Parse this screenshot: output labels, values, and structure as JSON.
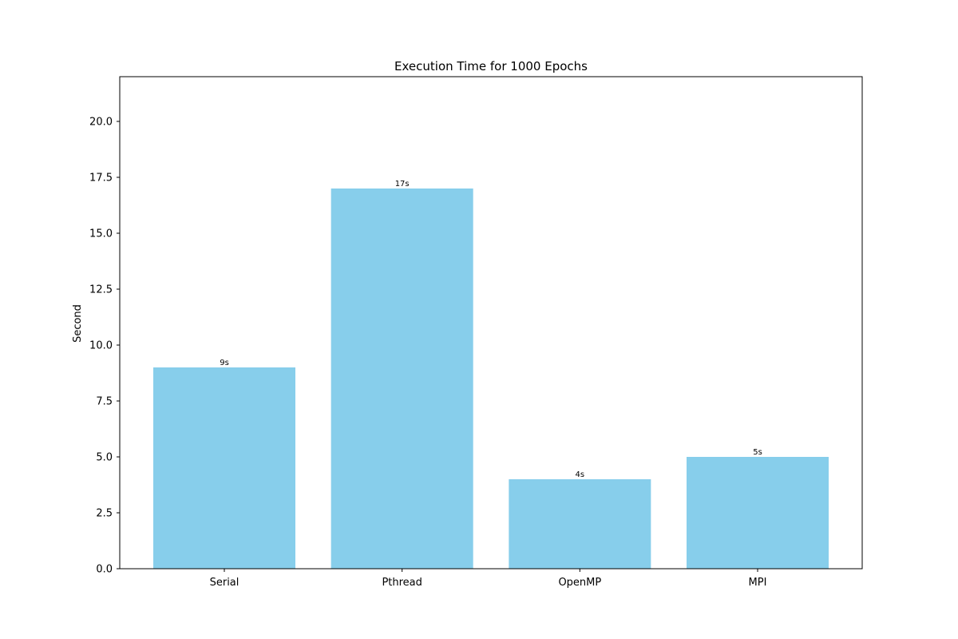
{
  "chart_data": {
    "type": "bar",
    "title": "Execution Time for 1000 Epochs",
    "xlabel": "",
    "ylabel": "Second",
    "categories": [
      "Serial",
      "Pthread",
      "OpenMP",
      "MPI"
    ],
    "values": [
      9,
      17,
      4,
      5
    ],
    "bar_labels": [
      "9s",
      "17s",
      "4s",
      "5s"
    ],
    "ylim": [
      0,
      22
    ],
    "yticks": [
      0.0,
      2.5,
      5.0,
      7.5,
      10.0,
      12.5,
      15.0,
      17.5,
      20.0
    ],
    "ytick_labels": [
      "0.0",
      "2.5",
      "5.0",
      "7.5",
      "10.0",
      "12.5",
      "15.0",
      "17.5",
      "20.0"
    ],
    "grid": false,
    "legend": "none",
    "colors": {
      "bar": "#87ceeb",
      "axis": "#000000"
    }
  }
}
